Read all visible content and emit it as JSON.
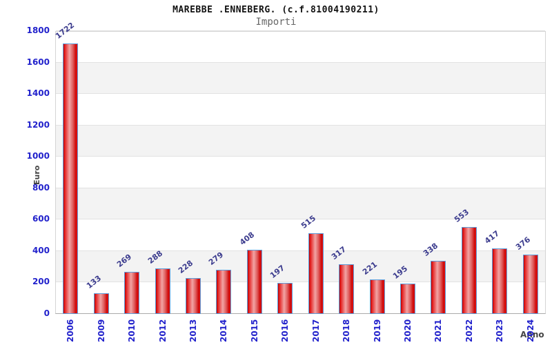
{
  "chart_data": {
    "type": "bar",
    "title": "MAREBBE .ENNEBERG. (c.f.81004190211)",
    "subtitle": "Importi",
    "xlabel": "Anno",
    "ylabel": "Euro",
    "categories": [
      "2006",
      "2009",
      "2010",
      "2012",
      "2013",
      "2014",
      "2015",
      "2016",
      "2017",
      "2018",
      "2019",
      "2020",
      "2021",
      "2022",
      "2023",
      "2024"
    ],
    "values": [
      1722,
      133,
      269,
      288,
      228,
      279,
      408,
      197,
      515,
      317,
      221,
      195,
      338,
      553,
      417,
      376
    ],
    "ylim": [
      0,
      1800
    ],
    "ytick_step": 200,
    "yticks": [
      0,
      200,
      400,
      600,
      800,
      1000,
      1200,
      1400,
      1600,
      1800
    ],
    "grid": "horizontal gridlines with alternating shaded bands every 200",
    "legend_position": "none",
    "colors": {
      "bar_fill_dark": "#be0000",
      "bar_fill_highlight": "#f2a4a4",
      "bar_border": "#5b9ddb",
      "axis_tick_label": "#2222cc",
      "value_label": "#3c3c8e",
      "band_shade": "#f3f3f3",
      "grid_line": "#e2e2e2",
      "plot_border": "#d4d4d4",
      "title_color": "#111111",
      "subtitle_color": "#666666",
      "axis_title_color": "#444444"
    }
  }
}
